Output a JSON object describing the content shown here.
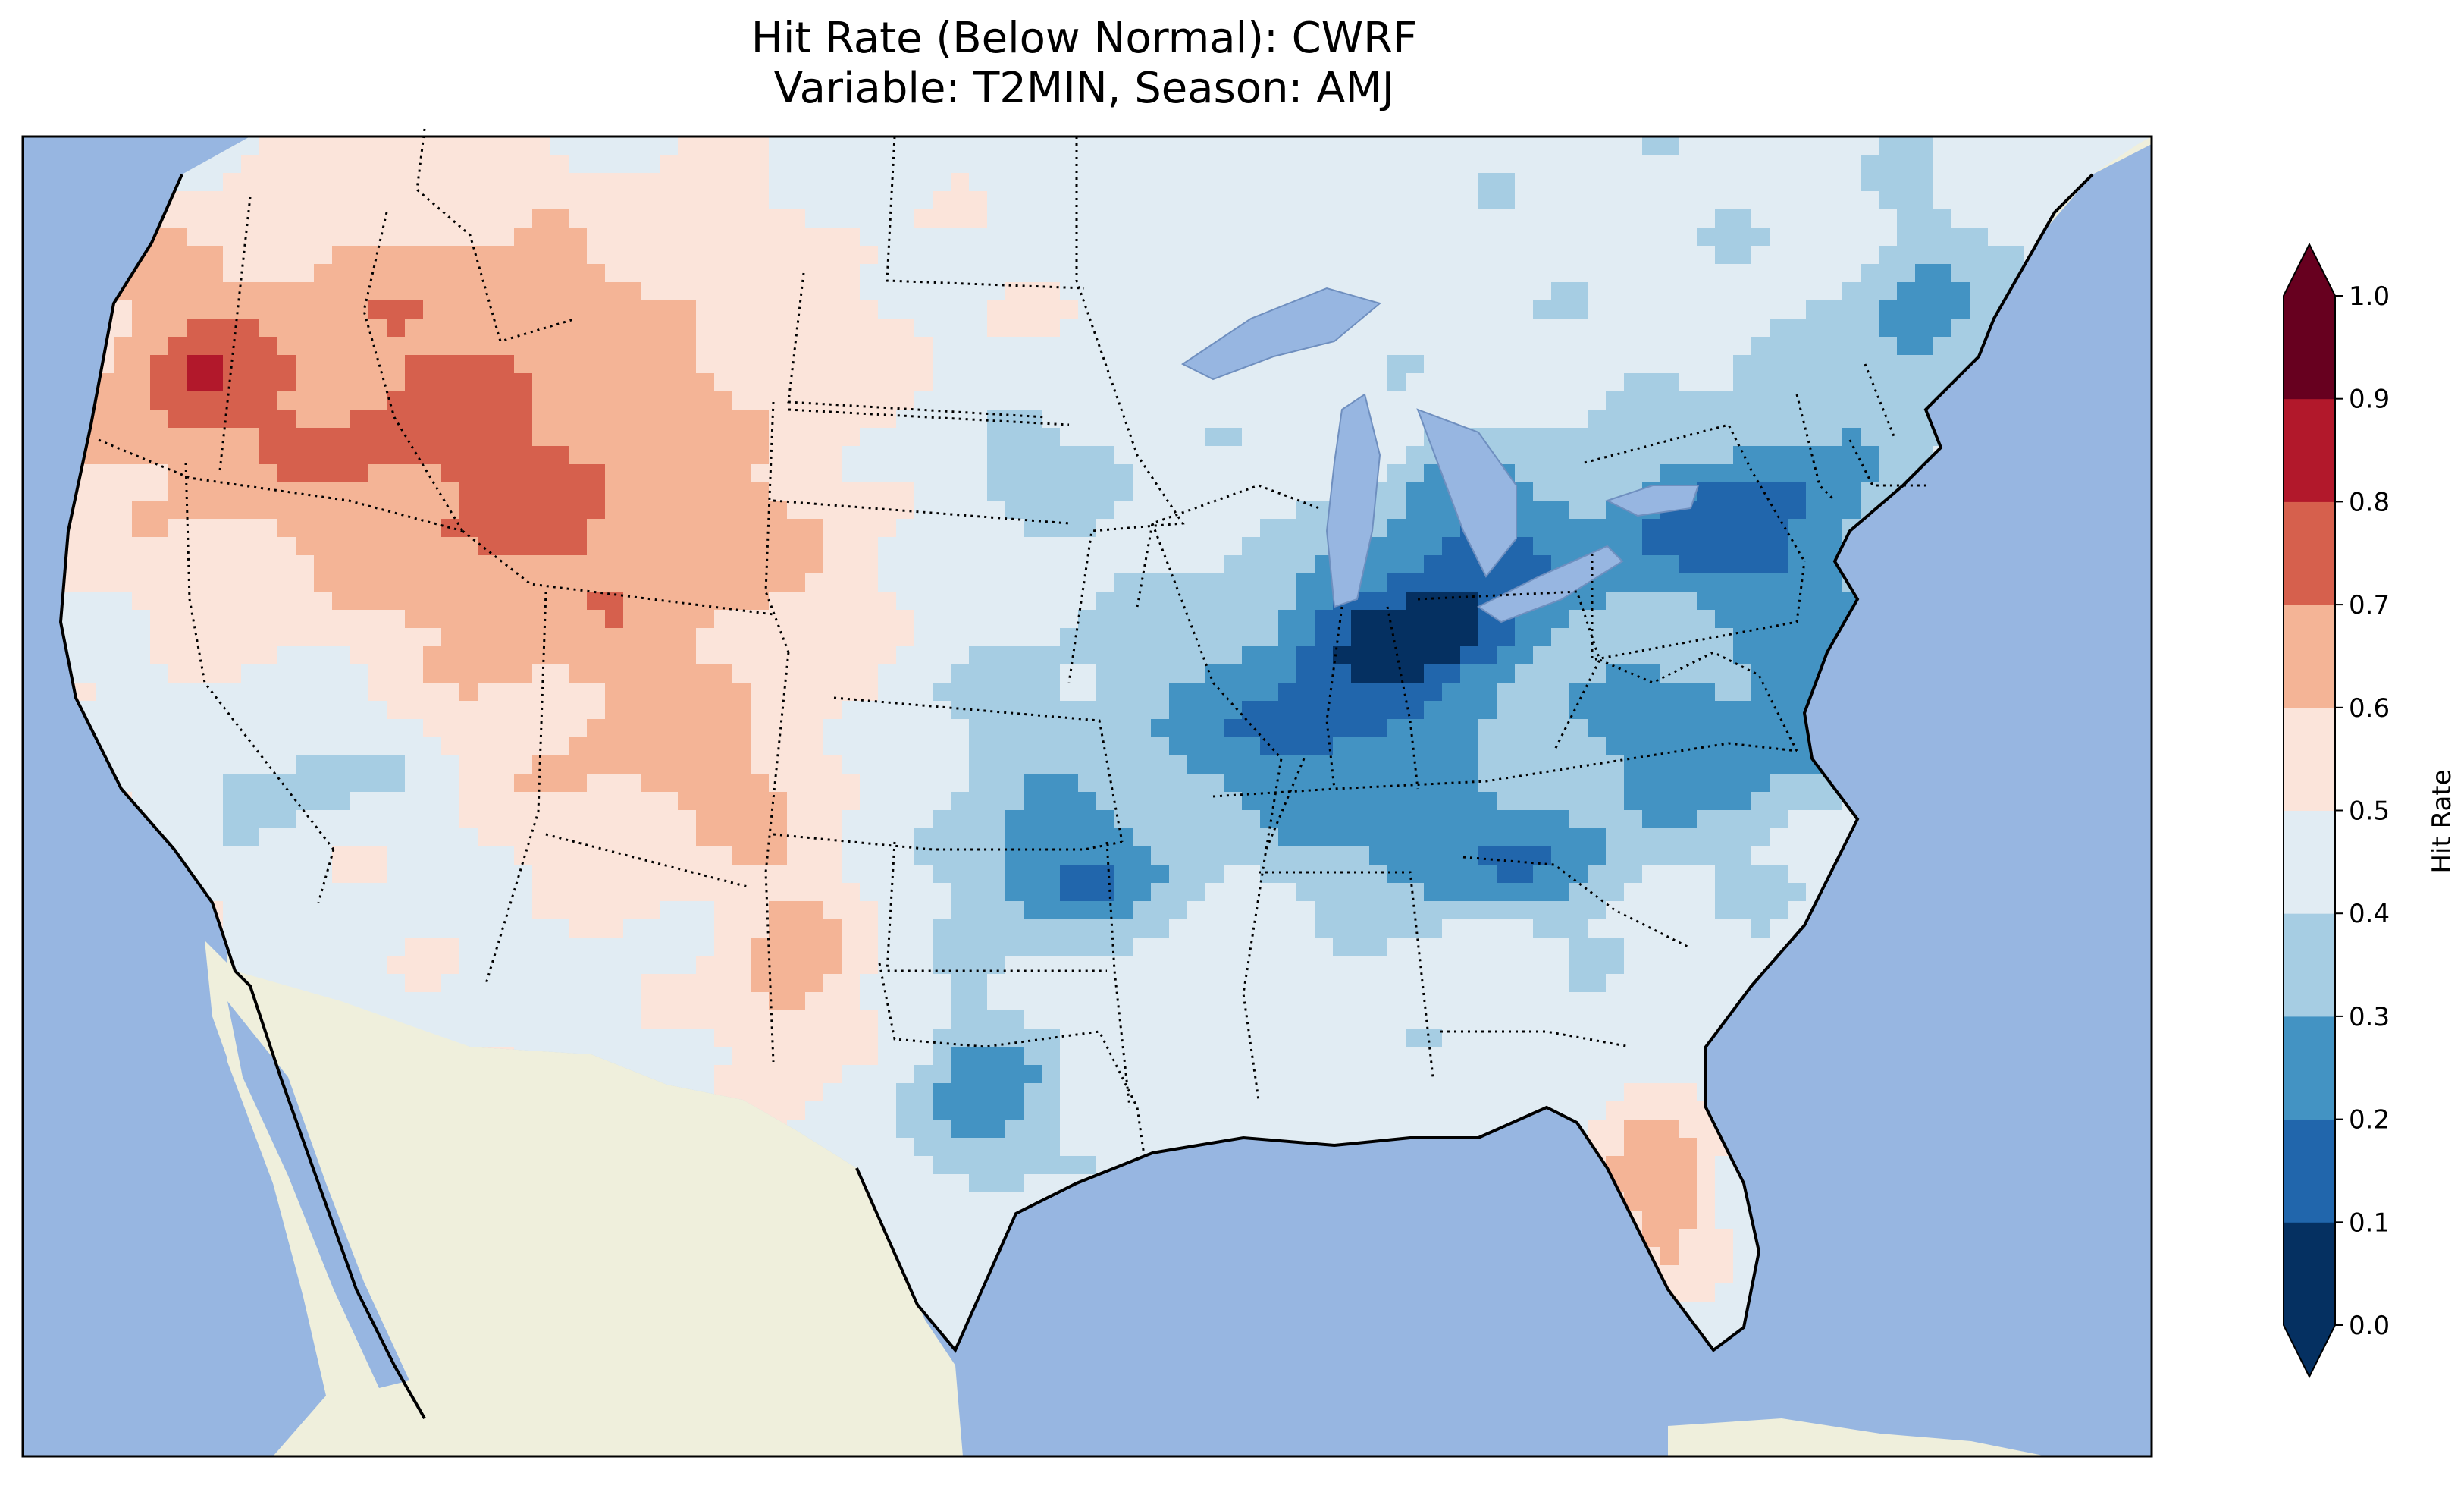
{
  "title": {
    "line1": "Hit Rate (Below Normal): CWRF",
    "line2": "Variable: T2MIN, Season: AMJ"
  },
  "colors": {
    "ocean": "#97b6e1",
    "land": "#efefdc",
    "border": "#000000"
  },
  "colorbar": {
    "label": "Hit Rate",
    "extend": "both",
    "ticks": [
      "0.0",
      "0.1",
      "0.2",
      "0.3",
      "0.4",
      "0.5",
      "0.6",
      "0.7",
      "0.8",
      "0.9",
      "1.0"
    ],
    "bins": [
      {
        "range": [
          0.0,
          0.1
        ],
        "color": "#053061"
      },
      {
        "range": [
          0.1,
          0.2
        ],
        "color": "#2166ac"
      },
      {
        "range": [
          0.2,
          0.3
        ],
        "color": "#4393c3"
      },
      {
        "range": [
          0.3,
          0.4
        ],
        "color": "#a6cde3"
      },
      {
        "range": [
          0.4,
          0.5
        ],
        "color": "#e1ecf3"
      },
      {
        "range": [
          0.5,
          0.6
        ],
        "color": "#fbe4da"
      },
      {
        "range": [
          0.6,
          0.7
        ],
        "color": "#f4b496"
      },
      {
        "range": [
          0.7,
          0.8
        ],
        "color": "#d6604d"
      },
      {
        "range": [
          0.8,
          0.9
        ],
        "color": "#b2182b"
      },
      {
        "range": [
          0.9,
          1.0
        ],
        "color": "#67001f"
      }
    ],
    "under_color": "#053061",
    "over_color": "#67001f"
  },
  "map": {
    "region": "Continental United States",
    "field": "hit rate, below normal T2MIN, AMJ"
  }
}
